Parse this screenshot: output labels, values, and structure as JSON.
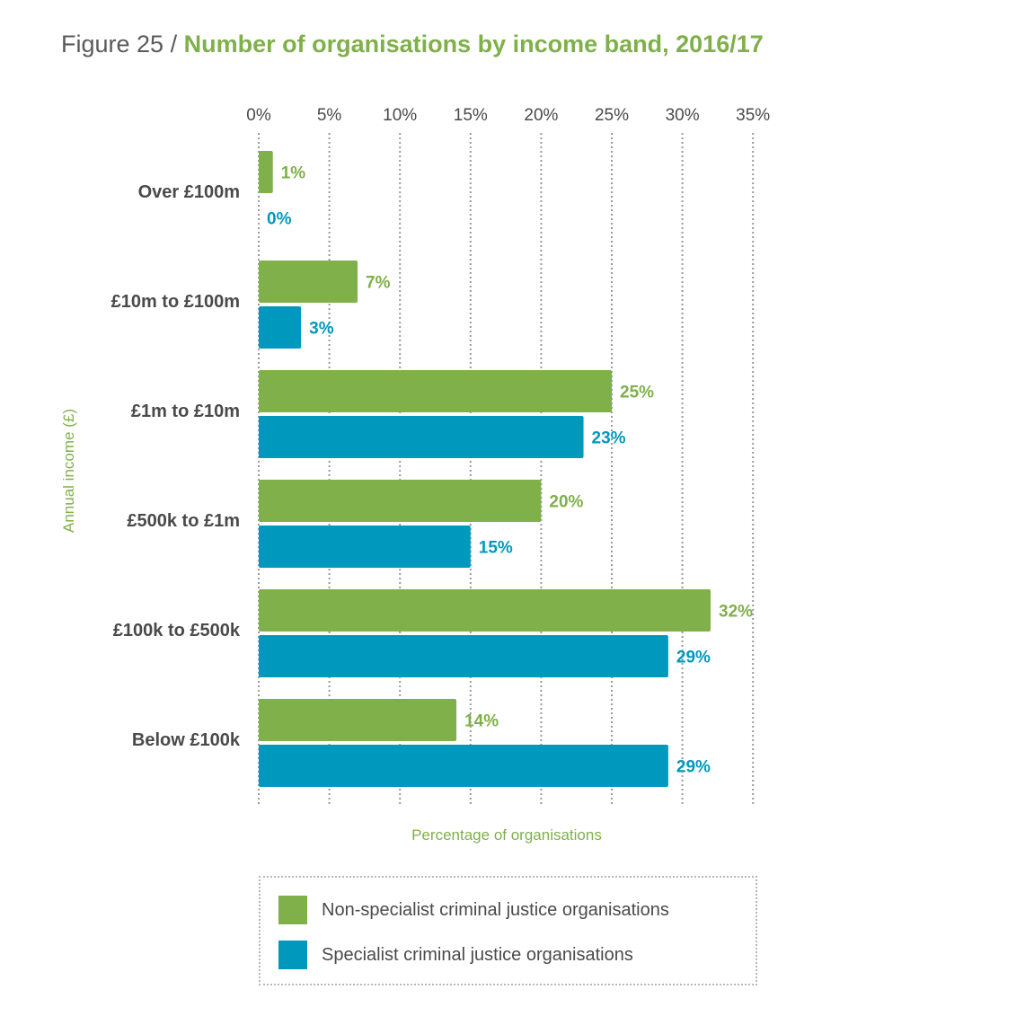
{
  "title": {
    "prefix": "Figure 25 / ",
    "main": "Number of organisations by income band, 2016/17"
  },
  "colors": {
    "green": "#7fb04a",
    "blue": "#0099bd",
    "text": "#4a4a4a",
    "grid": "#9a9a9a"
  },
  "chart_data": {
    "type": "bar",
    "orientation": "horizontal",
    "categories": [
      "Over £100m",
      "£10m to £100m",
      "£1m to £10m",
      "£500k to £1m",
      "£100k to £500k",
      "Below £100k"
    ],
    "series": [
      {
        "name": "Non-specialist criminal justice organisations",
        "color": "#7fb04a",
        "values": [
          1,
          7,
          25,
          20,
          32,
          14
        ],
        "labels": [
          "1%",
          "7%",
          "25%",
          "20%",
          "32%",
          "14%"
        ]
      },
      {
        "name": "Specialist criminal justice organisations",
        "color": "#0099bd",
        "values": [
          0,
          3,
          23,
          15,
          29,
          29
        ],
        "labels": [
          "0%",
          "3%",
          "23%",
          "15%",
          "29%",
          "29%"
        ]
      }
    ],
    "xlim": [
      0,
      35
    ],
    "xticks": [
      "0%",
      "5%",
      "10%",
      "15%",
      "20%",
      "25%",
      "30%",
      "35%"
    ],
    "xlabel": "Percentage of organisations",
    "ylabel": "Annual income (£)",
    "grid": "vertical dotted",
    "legend_position": "bottom"
  },
  "legend": [
    {
      "label": "Non-specialist criminal justice organisations",
      "color": "#7fb04a"
    },
    {
      "label": "Specialist criminal justice organisations",
      "color": "#0099bd"
    }
  ]
}
